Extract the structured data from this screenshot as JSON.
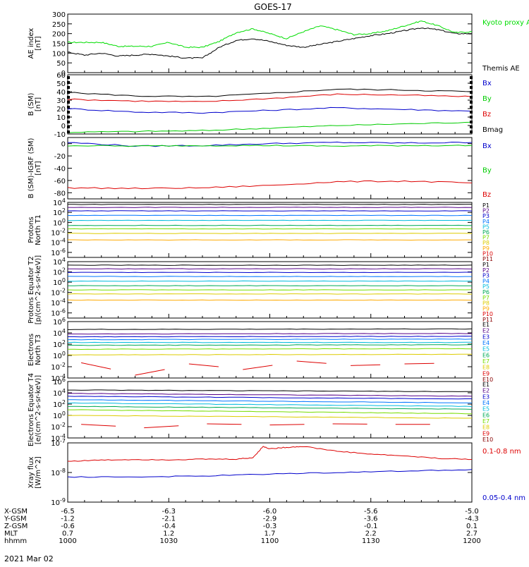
{
  "title": "GOES-17",
  "footer_date": "2021 Mar 02",
  "orbit": {
    "labels": [
      "X-GSM",
      "Y-GSM",
      "Z-GSM",
      "MLT",
      "hhmm"
    ],
    "columns": [
      [
        "-6.5",
        "-1.2",
        "-0.6",
        "0.7",
        "1000"
      ],
      [
        "-6.3",
        "-2.1",
        "-0.4",
        "1.2",
        "1030"
      ],
      [
        "-6.0",
        "-2.9",
        "-0.3",
        "1.7",
        "1100"
      ],
      [
        "-5.6",
        "-3.6",
        "-0.1",
        "2.2",
        "1130"
      ],
      [
        "-5.0",
        "-4.3",
        "0.1",
        "2.7",
        "1200"
      ]
    ]
  },
  "chart_data": [
    {
      "type": "line",
      "ylabel": "AE index [nT]",
      "ylim": [
        0,
        300
      ],
      "yticks": [
        "0",
        "50",
        "100",
        "150",
        "200",
        "250",
        "300"
      ],
      "series": [
        {
          "name": "Kyoto proxy AE",
          "color": "#00dd00",
          "x": [
            0,
            5,
            10,
            15,
            20,
            25,
            30,
            35,
            40,
            45,
            50,
            55,
            60,
            65,
            70,
            75,
            80,
            85,
            90,
            95,
            100,
            105,
            110,
            115,
            120
          ],
          "values": [
            155,
            155,
            155,
            135,
            135,
            135,
            155,
            130,
            130,
            160,
            205,
            225,
            200,
            175,
            210,
            240,
            220,
            195,
            200,
            215,
            240,
            265,
            240,
            205,
            210
          ]
        },
        {
          "name": "Themis AE",
          "color": "#000000",
          "x": [
            0,
            5,
            10,
            15,
            20,
            25,
            30,
            35,
            40,
            45,
            50,
            55,
            60,
            65,
            70,
            75,
            80,
            85,
            90,
            95,
            100,
            105,
            110,
            115,
            120
          ],
          "values": [
            105,
            90,
            100,
            85,
            90,
            95,
            85,
            75,
            75,
            130,
            165,
            175,
            160,
            140,
            130,
            145,
            160,
            175,
            190,
            200,
            215,
            230,
            220,
            200,
            200
          ]
        }
      ]
    },
    {
      "type": "line",
      "ylabel": "B (SM) [nT]",
      "ylim": [
        -10,
        60
      ],
      "yticks": [
        "-10",
        "0",
        "10",
        "20",
        "30",
        "40",
        "50",
        "60"
      ],
      "series": [
        {
          "name": "Bx",
          "color": "#0000cc",
          "x": [
            0,
            20,
            40,
            60,
            80,
            100,
            120
          ],
          "values": [
            20,
            16,
            15,
            18,
            21,
            19,
            17
          ]
        },
        {
          "name": "By",
          "color": "#00cc00",
          "x": [
            0,
            20,
            40,
            60,
            80,
            100,
            120
          ],
          "values": [
            -8,
            -7,
            -6,
            -3,
            0,
            2,
            4
          ]
        },
        {
          "name": "Bz",
          "color": "#dd0000",
          "x": [
            0,
            20,
            40,
            60,
            80,
            100,
            120
          ],
          "values": [
            31,
            29,
            28,
            32,
            37,
            36,
            34
          ]
        },
        {
          "name": "Bmag",
          "color": "#000000",
          "x": [
            0,
            20,
            40,
            60,
            80,
            100,
            120
          ],
          "values": [
            39,
            35,
            34,
            38,
            43,
            42,
            40
          ]
        }
      ]
    },
    {
      "type": "line",
      "ylabel": "B (SM)-IGRF (SM) [nT]",
      "ylim": [
        -90,
        10
      ],
      "yticks": [
        "-80",
        "-60",
        "-40",
        "-20",
        "0"
      ],
      "series": [
        {
          "name": "Bx",
          "color": "#0000cc",
          "x": [
            0,
            20,
            40,
            60,
            80,
            100,
            120
          ],
          "values": [
            2,
            -4,
            -3,
            0,
            2,
            1,
            2
          ]
        },
        {
          "name": "By",
          "color": "#00cc00",
          "x": [
            0,
            20,
            40,
            60,
            80,
            100,
            120
          ],
          "values": [
            -3,
            -4,
            -3,
            -3,
            -4,
            -3,
            -3
          ]
        },
        {
          "name": "Bz",
          "color": "#dd0000",
          "x": [
            0,
            20,
            40,
            60,
            80,
            100,
            120
          ],
          "values": [
            -72,
            -73,
            -72,
            -68,
            -62,
            -61,
            -64
          ]
        }
      ]
    },
    {
      "type": "line",
      "ylabel": "Protons North T1",
      "log": true,
      "ylim": [
        -7,
        4
      ],
      "yticks": [
        "10^4",
        "10^2",
        "10^0",
        "10^-2",
        "10^-4",
        "10^-6"
      ],
      "series": [
        {
          "name": "P1",
          "color": "#000000",
          "values": [
            3.6,
            3.6
          ]
        },
        {
          "name": "P2",
          "color": "#550088",
          "values": [
            3.0,
            3.0
          ]
        },
        {
          "name": "P3",
          "color": "#0000cc",
          "values": [
            2.3,
            2.3
          ]
        },
        {
          "name": "P4",
          "color": "#0077ff",
          "values": [
            1.4,
            1.4
          ]
        },
        {
          "name": "P5",
          "color": "#00bbdd",
          "values": [
            0.4,
            0.4
          ]
        },
        {
          "name": "P6",
          "color": "#00aa55",
          "values": [
            -0.6,
            -0.6
          ]
        },
        {
          "name": "P7",
          "color": "#77dd00",
          "values": [
            -1.3,
            -1.3
          ]
        },
        {
          "name": "P8",
          "color": "#ddcc00",
          "values": [
            -2.2,
            -2.2
          ]
        },
        {
          "name": "P9",
          "color": "#ffaa00",
          "values": [
            -3.5,
            -3.5
          ]
        },
        {
          "name": "P10",
          "color": "#dd0000",
          "values": []
        },
        {
          "name": "P11",
          "color": "#880000",
          "values": []
        }
      ]
    },
    {
      "type": "line",
      "ylabel": "Protons Equator T2 [p/(cm^2-s-sr-keV)]",
      "log": true,
      "ylim": [
        -7,
        4
      ],
      "yticks": [
        "10^4",
        "10^2",
        "10^0",
        "10^-2",
        "10^-4",
        "10^-6"
      ],
      "series": [
        {
          "name": "P1",
          "color": "#000000",
          "values": [
            3.3,
            3.3
          ]
        },
        {
          "name": "P2",
          "color": "#550088",
          "values": [
            2.6,
            2.6
          ]
        },
        {
          "name": "P3",
          "color": "#0000cc",
          "values": [
            1.9,
            1.9
          ]
        },
        {
          "name": "P4",
          "color": "#0077ff",
          "values": [
            1.1,
            1.1
          ]
        },
        {
          "name": "P5",
          "color": "#00bbdd",
          "values": [
            0.2,
            0.2
          ]
        },
        {
          "name": "P6",
          "color": "#00aa55",
          "values": [
            -0.7,
            -0.7
          ]
        },
        {
          "name": "P7",
          "color": "#77dd00",
          "values": [
            -1.5,
            -1.5
          ]
        },
        {
          "name": "P8",
          "color": "#ddcc00",
          "values": [
            -2.3,
            -2.3
          ]
        },
        {
          "name": "P9",
          "color": "#ffaa00",
          "values": [
            -3.5,
            -3.5
          ]
        },
        {
          "name": "P10",
          "color": "#dd0000",
          "values": []
        },
        {
          "name": "P11",
          "color": "#880000",
          "values": []
        }
      ]
    },
    {
      "type": "line",
      "ylabel": "Electrons North T3",
      "log": true,
      "ylim": [
        -4,
        6
      ],
      "yticks": [
        "10^6",
        "10^4",
        "10^2",
        "10^0",
        "10^-2",
        "10^-4"
      ],
      "series": [
        {
          "name": "E1",
          "color": "#000000",
          "values": [
            4.6,
            4.7
          ]
        },
        {
          "name": "E2",
          "color": "#550088",
          "values": [
            3.8,
            3.9
          ]
        },
        {
          "name": "E3",
          "color": "#0000cc",
          "values": [
            3.3,
            3.4
          ]
        },
        {
          "name": "E4",
          "color": "#0077ff",
          "values": [
            2.8,
            2.9
          ]
        },
        {
          "name": "E5",
          "color": "#00bbdd",
          "values": [
            2.3,
            2.3
          ]
        },
        {
          "name": "E6",
          "color": "#00aa55",
          "values": [
            1.8,
            1.9
          ]
        },
        {
          "name": "E7",
          "color": "#77dd00",
          "values": [
            1.1,
            1.2
          ]
        },
        {
          "name": "E8",
          "color": "#ddcc00",
          "values": [
            0.1,
            0.2
          ]
        },
        {
          "name": "E9",
          "color": "#dd0000",
          "values": [
            -1.3,
            -3.5,
            -1.5,
            -2.5,
            -1.0,
            -1.8,
            -1.5
          ]
        },
        {
          "name": "E10",
          "color": "#880000",
          "values": []
        }
      ]
    },
    {
      "type": "line",
      "ylabel": "Electrons Equator T4 [e/(cm^2-s-sr-keV)]",
      "log": true,
      "ylim": [
        -4,
        6
      ],
      "yticks": [
        "10^6",
        "10^4",
        "10^2",
        "10^0",
        "10^-2",
        "10^-4"
      ],
      "series": [
        {
          "name": "E1",
          "color": "#000000",
          "values": [
            4.5,
            4.2
          ]
        },
        {
          "name": "E2",
          "color": "#550088",
          "values": [
            3.9,
            3.4
          ]
        },
        {
          "name": "E3",
          "color": "#0000cc",
          "values": [
            3.4,
            2.9
          ]
        },
        {
          "name": "E4",
          "color": "#0077ff",
          "values": [
            2.8,
            2.2
          ]
        },
        {
          "name": "E5",
          "color": "#00bbdd",
          "values": [
            2.2,
            1.6
          ]
        },
        {
          "name": "E6",
          "color": "#00aa55",
          "values": [
            1.6,
            1.1
          ]
        },
        {
          "name": "E7",
          "color": "#77dd00",
          "values": [
            1.0,
            0.3
          ]
        },
        {
          "name": "E8",
          "color": "#ddcc00",
          "values": [
            0.0,
            -0.5
          ]
        },
        {
          "name": "E9",
          "color": "#dd0000",
          "values": [
            -1.6,
            -2.2,
            -1.5,
            -1.7,
            -1.5,
            -1.6
          ]
        },
        {
          "name": "E10",
          "color": "#880000",
          "values": []
        }
      ]
    },
    {
      "type": "line",
      "ylabel": "Xray flux [W/m^2]",
      "log": true,
      "ylim": [
        -9,
        -7
      ],
      "yticks": [
        "10^-7",
        "10^-8",
        "10^-9"
      ],
      "series": [
        {
          "name": "0.1-0.8 nm",
          "color": "#dd0000",
          "x": [
            0,
            10,
            20,
            30,
            40,
            50,
            55,
            58,
            60,
            65,
            70,
            80,
            90,
            100,
            110,
            120
          ],
          "values": [
            -7.62,
            -7.58,
            -7.56,
            -7.57,
            -7.55,
            -7.55,
            -7.5,
            -7.12,
            -7.2,
            -7.15,
            -7.12,
            -7.28,
            -7.38,
            -7.44,
            -7.52,
            -7.56
          ]
        },
        {
          "name": "0.05-0.4 nm",
          "color": "#0000cc",
          "x": [
            0,
            20,
            40,
            60,
            80,
            100,
            120
          ],
          "values": [
            -8.15,
            -8.15,
            -8.12,
            -8.05,
            -8.0,
            -7.95,
            -7.9
          ]
        }
      ]
    }
  ]
}
